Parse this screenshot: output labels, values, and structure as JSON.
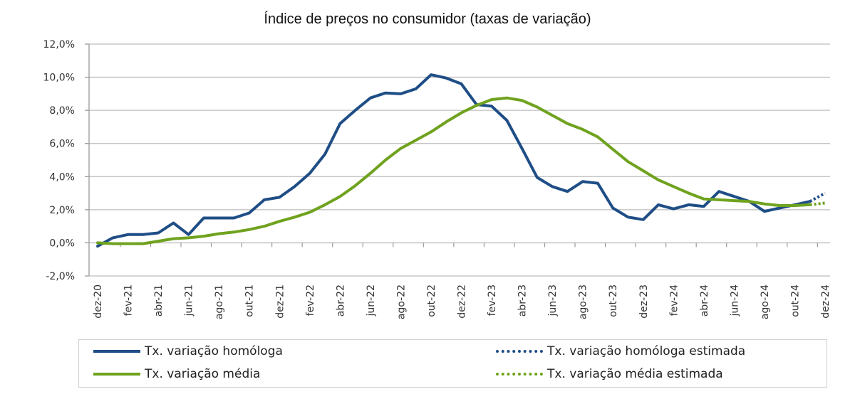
{
  "chart_data": {
    "type": "line",
    "title": "Índice de preços no consumidor  (taxas  de variação)",
    "xlabel": "",
    "ylabel": "",
    "ylim": [
      -2.0,
      12.0
    ],
    "yticks": [
      -2.0,
      0.0,
      2.0,
      4.0,
      6.0,
      8.0,
      10.0,
      12.0
    ],
    "ytick_labels": [
      "-2,0%",
      "0,0%",
      "2,0%",
      "4,0%",
      "6,0%",
      "8,0%",
      "10,0%",
      "12,0%"
    ],
    "grid": true,
    "x": [
      "dez-20",
      "jan-21",
      "fev-21",
      "mar-21",
      "abr-21",
      "mai-21",
      "jun-21",
      "jul-21",
      "ago-21",
      "set-21",
      "out-21",
      "nov-21",
      "dez-21",
      "jan-22",
      "fev-22",
      "mar-22",
      "abr-22",
      "mai-22",
      "jun-22",
      "jul-22",
      "ago-22",
      "set-22",
      "out-22",
      "nov-22",
      "dez-22",
      "jan-23",
      "fev-23",
      "mar-23",
      "abr-23",
      "mai-23",
      "jun-23",
      "jul-23",
      "ago-23",
      "set-23",
      "out-23",
      "nov-23",
      "dez-23",
      "jan-24",
      "fev-24",
      "mar-24",
      "abr-24",
      "mai-24",
      "jun-24",
      "jul-24",
      "ago-24",
      "set-24",
      "out-24",
      "nov-24",
      "dez-24"
    ],
    "xtick_labels": [
      "dez-20",
      "fev-21",
      "abr-21",
      "jun-21",
      "ago-21",
      "out-21",
      "dez-21",
      "fev-22",
      "abr-22",
      "jun-22",
      "ago-22",
      "out-22",
      "dez-22",
      "fev-23",
      "abr-23",
      "jun-23",
      "ago-23",
      "out-23",
      "dez-23",
      "fev-24",
      "abr-24",
      "jun-24",
      "ago-24",
      "out-24",
      "dez-24"
    ],
    "series": [
      {
        "name": "Tx. variação homóloga",
        "style": "solid",
        "color": "#1F4E86",
        "values": [
          -0.2,
          0.3,
          0.5,
          0.5,
          0.6,
          1.2,
          0.5,
          1.5,
          1.5,
          1.5,
          1.8,
          2.6,
          2.75,
          3.4,
          4.2,
          5.35,
          7.2,
          8.0,
          8.75,
          9.05,
          9.0,
          9.3,
          10.15,
          9.95,
          9.6,
          8.35,
          8.25,
          7.4,
          5.7,
          3.95,
          3.4,
          3.1,
          3.7,
          3.6,
          2.1,
          1.55,
          1.4,
          2.3,
          2.05,
          2.3,
          2.2,
          3.1,
          2.8,
          2.5,
          1.9,
          2.1,
          2.3,
          2.5,
          null
        ]
      },
      {
        "name": "Tx. variação homóloga estimada",
        "style": "dotted",
        "color": "#1F4E86",
        "values": [
          null,
          null,
          null,
          null,
          null,
          null,
          null,
          null,
          null,
          null,
          null,
          null,
          null,
          null,
          null,
          null,
          null,
          null,
          null,
          null,
          null,
          null,
          null,
          null,
          null,
          null,
          null,
          null,
          null,
          null,
          null,
          null,
          null,
          null,
          null,
          null,
          null,
          null,
          null,
          null,
          null,
          null,
          null,
          null,
          null,
          null,
          null,
          2.5,
          3.0
        ]
      },
      {
        "name": "Tx. variação média",
        "style": "solid",
        "color": "#6FA21E",
        "values": [
          0.0,
          -0.05,
          -0.05,
          -0.05,
          0.1,
          0.25,
          0.3,
          0.4,
          0.55,
          0.65,
          0.8,
          1.0,
          1.3,
          1.55,
          1.85,
          2.3,
          2.8,
          3.45,
          4.2,
          5.0,
          5.7,
          6.2,
          6.7,
          7.3,
          7.85,
          8.3,
          8.65,
          8.75,
          8.6,
          8.2,
          7.7,
          7.2,
          6.85,
          6.4,
          5.65,
          4.9,
          4.35,
          3.8,
          3.4,
          3.0,
          2.65,
          2.6,
          2.55,
          2.5,
          2.35,
          2.25,
          2.25,
          2.3,
          null
        ]
      },
      {
        "name": "Tx. variação média  estimada",
        "style": "dotted",
        "color": "#6FA21E",
        "values": [
          null,
          null,
          null,
          null,
          null,
          null,
          null,
          null,
          null,
          null,
          null,
          null,
          null,
          null,
          null,
          null,
          null,
          null,
          null,
          null,
          null,
          null,
          null,
          null,
          null,
          null,
          null,
          null,
          null,
          null,
          null,
          null,
          null,
          null,
          null,
          null,
          null,
          null,
          null,
          null,
          null,
          null,
          null,
          null,
          null,
          null,
          null,
          2.3,
          2.4
        ]
      }
    ],
    "legend_position": "bottom"
  },
  "legend": {
    "items": [
      {
        "label": "Tx. variação homóloga",
        "color": "#1F4E86",
        "style": "solid"
      },
      {
        "label": "Tx. variação homóloga estimada",
        "color": "#1F4E86",
        "style": "dotted"
      },
      {
        "label": "Tx. variação média",
        "color": "#6FA21E",
        "style": "solid"
      },
      {
        "label": "Tx. variação média  estimada",
        "color": "#6FA21E",
        "style": "dotted"
      }
    ]
  },
  "colors": {
    "grid": "#bdbdbd",
    "axis": "#999999"
  }
}
